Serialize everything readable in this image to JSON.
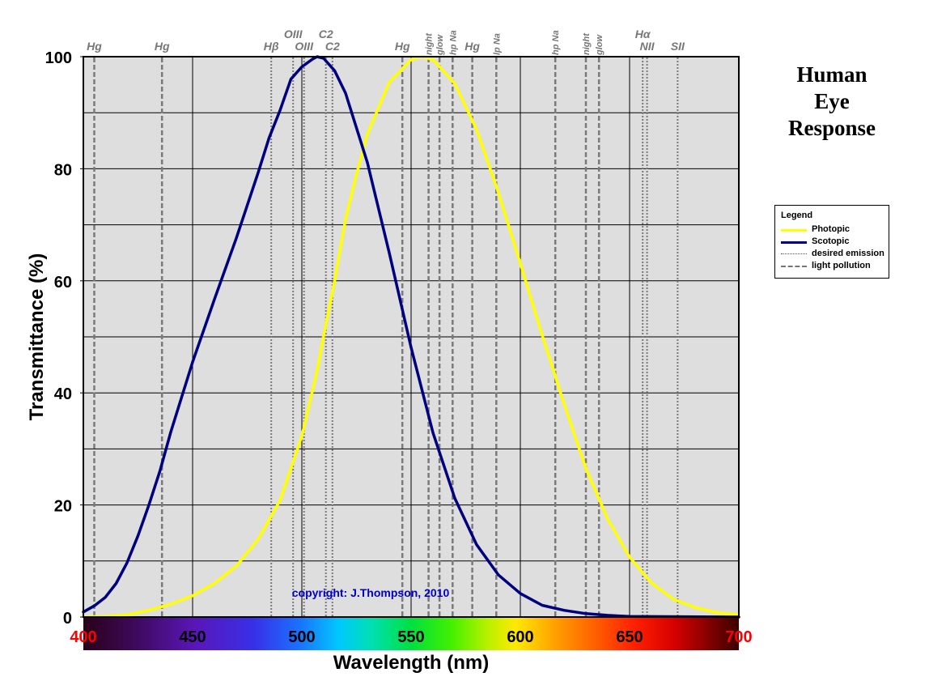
{
  "side_title": [
    "Human",
    "Eye",
    "Response"
  ],
  "copyright": "copyright: J.Thompson, 2010",
  "colors": {
    "plot_bg": "#dedede",
    "photopic": "#ffff00",
    "scotopic": "#00007f",
    "vline": "#7a7a7a",
    "tick_red": "#ff0000",
    "copyright": "#0000cc"
  },
  "legend": {
    "title": "Legend",
    "items": [
      {
        "label": "Photopic",
        "style": "photopic"
      },
      {
        "label": "Scotopic",
        "style": "scotopic"
      },
      {
        "label": "desired emission",
        "style": "dotted"
      },
      {
        "label": "light pollution",
        "style": "dashed"
      }
    ]
  },
  "chart_data": {
    "type": "line",
    "xlabel": "Wavelength (nm)",
    "ylabel": "Transmittance (%)",
    "xlim": [
      400,
      700
    ],
    "ylim": [
      0,
      100
    ],
    "x_ticks": [
      {
        "value": 400,
        "label": "400",
        "color": "red"
      },
      {
        "value": 450,
        "label": "450",
        "color": "black"
      },
      {
        "value": 500,
        "label": "500",
        "color": "black"
      },
      {
        "value": 550,
        "label": "550",
        "color": "black"
      },
      {
        "value": 600,
        "label": "600",
        "color": "black"
      },
      {
        "value": 650,
        "label": "650",
        "color": "black"
      },
      {
        "value": 700,
        "label": "700",
        "color": "red"
      }
    ],
    "y_ticks": [
      0,
      20,
      40,
      60,
      80,
      100
    ],
    "grid": true,
    "spectrum_bar": true,
    "series": [
      {
        "name": "Photopic",
        "x": [
          400,
          410,
          420,
          430,
          440,
          450,
          460,
          470,
          480,
          490,
          500,
          507,
          510,
          515,
          520,
          525,
          530,
          540,
          550,
          555,
          560,
          570,
          580,
          590,
          600,
          610,
          620,
          630,
          640,
          650,
          660,
          670,
          680,
          690,
          700
        ],
        "y": [
          0.04,
          0.12,
          0.4,
          1.2,
          2.3,
          3.8,
          6,
          9.1,
          13.9,
          20.8,
          32.3,
          44,
          50.3,
          60,
          71,
          79,
          86.2,
          95.4,
          99.5,
          100,
          99.5,
          95.2,
          87,
          75.7,
          63.1,
          50.3,
          38.1,
          26.5,
          17.5,
          10.7,
          6.1,
          3.2,
          1.7,
          0.8,
          0.4
        ]
      },
      {
        "name": "Scotopic",
        "x": [
          400,
          405,
          410,
          415,
          420,
          425,
          430,
          435,
          440,
          450,
          460,
          470,
          480,
          485,
          490,
          495,
          500,
          505,
          507,
          510,
          515,
          520,
          530,
          540,
          550,
          560,
          570,
          580,
          590,
          600,
          610,
          620,
          630,
          640,
          650,
          700
        ],
        "y": [
          0.9,
          2,
          3.5,
          6,
          9.7,
          14.5,
          20,
          26,
          33,
          45.5,
          56.7,
          67.6,
          79.3,
          85.5,
          90.4,
          96,
          98.2,
          99.6,
          100,
          99.7,
          97.5,
          93.5,
          81.1,
          65,
          48.1,
          32.9,
          21.2,
          12.9,
          7.5,
          4.2,
          2.1,
          1.2,
          0.6,
          0.3,
          0.1,
          0.0
        ]
      }
    ],
    "emission_lines": [
      {
        "label": "Hg",
        "x": 405,
        "style": "dashed",
        "row": 1
      },
      {
        "label": "Hg",
        "x": 436,
        "style": "dashed",
        "row": 1
      },
      {
        "label": "Hβ",
        "x": 486,
        "style": "dotted",
        "row": 1
      },
      {
        "label": "OIII",
        "x": 496,
        "style": "dotted",
        "row": 2
      },
      {
        "label": "OIII",
        "x": 501,
        "style": "dotted",
        "row": 1
      },
      {
        "label": "C2",
        "x": 511,
        "style": "dotted",
        "row": 2
      },
      {
        "label": "C2",
        "x": 514,
        "style": "dotted",
        "row": 1
      },
      {
        "label": "Hg",
        "x": 546,
        "style": "dashed",
        "row": 1
      },
      {
        "label": "night",
        "x": 558,
        "style": "dashed",
        "row": 0
      },
      {
        "label": "glow",
        "x": 563,
        "style": "dashed",
        "row": 0
      },
      {
        "label": "hp Na",
        "x": 569,
        "style": "dashed",
        "row": 0
      },
      {
        "label": "Hg",
        "x": 578,
        "style": "dashed",
        "row": 1
      },
      {
        "label": "lp Na",
        "x": 589,
        "style": "dashed",
        "row": 0
      },
      {
        "label": "hp Na",
        "x": 616,
        "style": "dashed",
        "row": 0
      },
      {
        "label": "night",
        "x": 630,
        "style": "dashed",
        "row": 0
      },
      {
        "label": "glow",
        "x": 636,
        "style": "dashed",
        "row": 0
      },
      {
        "label": "Hα",
        "x": 656,
        "style": "dotted",
        "row": 2
      },
      {
        "label": "NII",
        "x": 658,
        "style": "dotted",
        "row": 1
      },
      {
        "label": "SII",
        "x": 672,
        "style": "dotted",
        "row": 1
      }
    ]
  }
}
